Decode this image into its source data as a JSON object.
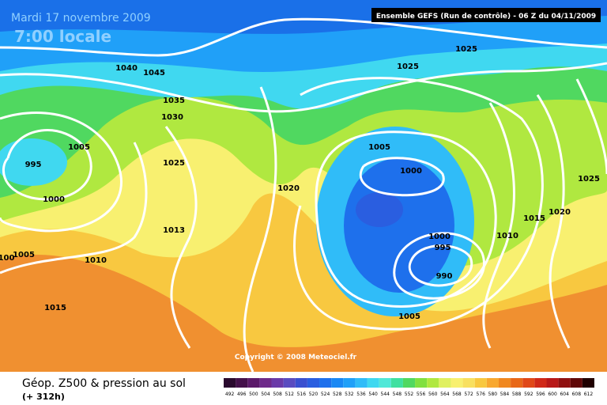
{
  "header": {
    "date": "Mardi 17 novembre 2009",
    "time": "7:00 locale",
    "run": "Ensemble GEFS (Run de contrôle)  - 06 Z du 04/11/2009"
  },
  "map": {
    "isobar_labels": [
      1040,
      1045,
      1035,
      1030,
      1025,
      1005,
      995,
      1000,
      1013,
      1020,
      1010,
      1005,
      100,
      1015,
      1025,
      1025,
      1005,
      1000,
      1000,
      995,
      990,
      1010,
      1015,
      1020,
      1025,
      1005
    ],
    "copyright": "Copyright © 2008 Meteociel.fr"
  },
  "footer": {
    "title": "Géop. Z500 & pression au sol",
    "lead": "(+ 312h)",
    "scale": {
      "values": [
        492,
        496,
        500,
        504,
        508,
        512,
        516,
        520,
        524,
        528,
        532,
        536,
        540,
        544,
        548,
        552,
        556,
        560,
        564,
        568,
        572,
        576,
        580,
        584,
        588,
        592,
        596,
        600,
        604,
        608,
        612
      ],
      "colors": [
        "#2a0a2e",
        "#44104a",
        "#5c1a6a",
        "#6e2a8a",
        "#6a3aa8",
        "#5a4cc0",
        "#3a50d0",
        "#2a5ee0",
        "#1e70ec",
        "#1a88f4",
        "#20a0f8",
        "#30bcf8",
        "#40d8f0",
        "#50e8d8",
        "#40e0a0",
        "#50d860",
        "#80e040",
        "#b0e840",
        "#e0f060",
        "#f8f070",
        "#f8e060",
        "#f8c840",
        "#f8a830",
        "#f08820",
        "#e86818",
        "#e04818",
        "#d02818",
        "#b81818",
        "#901010",
        "#600808",
        "#200000"
      ]
    }
  }
}
